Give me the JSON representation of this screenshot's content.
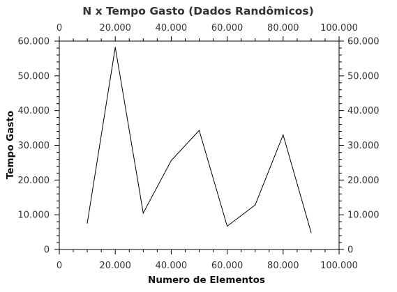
{
  "chart_data": {
    "type": "line",
    "title": "N x Tempo Gasto (Dados Randômicos)",
    "xlabel": "Numero de Elementos",
    "ylabel": "Tempo Gasto",
    "xlim": [
      0,
      100000
    ],
    "ylim": [
      0,
      60000
    ],
    "x_ticks": [
      0,
      20000,
      40000,
      60000,
      80000,
      100000
    ],
    "x_tick_labels": [
      "0",
      "20.000",
      "40.000",
      "60.000",
      "80.000",
      "100.000"
    ],
    "y_ticks": [
      0,
      10000,
      20000,
      30000,
      40000,
      50000,
      60000
    ],
    "y_tick_labels": [
      "0",
      "10.000",
      "20.000",
      "30.000",
      "40.000",
      "50.000",
      "60.000"
    ],
    "mirror_axes": true,
    "grid": false,
    "legend": "none",
    "line_color": "#000000",
    "series": [
      {
        "x": [
          10000,
          20000,
          30000,
          40000,
          50000,
          60000,
          70000,
          80000,
          90000
        ],
        "y": [
          7600,
          58200,
          10500,
          25600,
          34300,
          6700,
          12800,
          33000,
          4900
        ]
      }
    ]
  }
}
